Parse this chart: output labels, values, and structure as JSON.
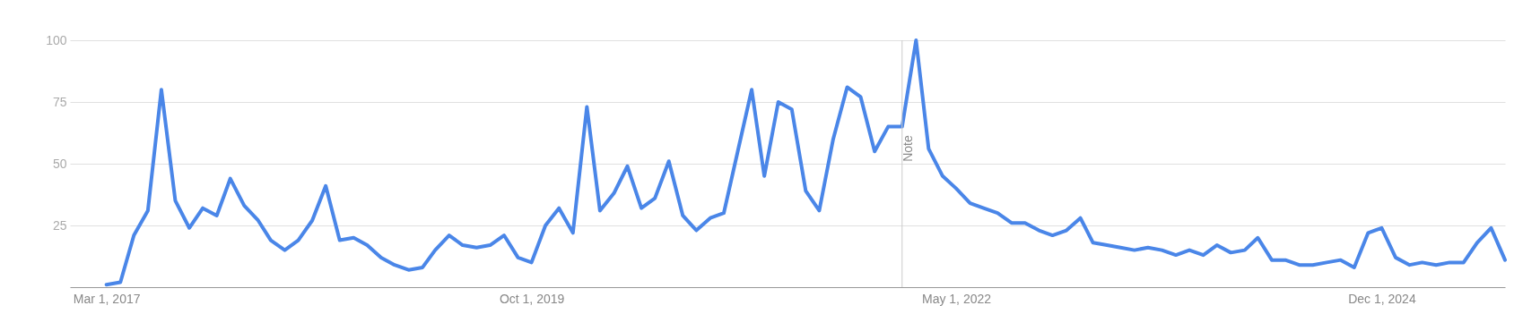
{
  "chart_data": {
    "type": "line",
    "x": [
      "2017-03-01",
      "2017-04-01",
      "2017-05-01",
      "2017-06-01",
      "2017-07-01",
      "2017-08-01",
      "2017-09-01",
      "2017-10-01",
      "2017-11-01",
      "2017-12-01",
      "2018-01-01",
      "2018-02-01",
      "2018-03-01",
      "2018-04-01",
      "2018-05-01",
      "2018-06-01",
      "2018-07-01",
      "2018-08-01",
      "2018-09-01",
      "2018-10-01",
      "2018-11-01",
      "2018-12-01",
      "2019-01-01",
      "2019-02-01",
      "2019-03-01",
      "2019-04-01",
      "2019-05-01",
      "2019-06-01",
      "2019-07-01",
      "2019-08-01",
      "2019-09-01",
      "2019-10-01",
      "2019-11-01",
      "2019-12-01",
      "2020-01-01",
      "2020-02-01",
      "2020-03-01",
      "2020-04-01",
      "2020-05-01",
      "2020-06-01",
      "2020-07-01",
      "2020-08-01",
      "2020-09-01",
      "2020-10-01",
      "2020-11-01",
      "2020-12-01",
      "2021-01-01",
      "2021-02-01",
      "2021-03-01",
      "2021-04-01",
      "2021-05-01",
      "2021-06-01",
      "2021-07-01",
      "2021-08-01",
      "2021-09-01",
      "2021-10-01",
      "2021-11-01",
      "2021-12-01",
      "2022-01-01",
      "2022-02-01",
      "2022-03-01",
      "2022-04-01",
      "2022-05-01",
      "2022-06-01",
      "2022-07-01",
      "2022-08-01",
      "2022-09-01",
      "2022-10-01",
      "2022-11-01",
      "2022-12-01",
      "2023-01-01",
      "2023-02-01",
      "2023-03-01",
      "2023-04-01",
      "2023-05-01",
      "2023-06-01",
      "2023-07-01",
      "2023-08-01",
      "2023-09-01",
      "2023-10-01",
      "2023-11-01",
      "2023-12-01",
      "2024-01-01",
      "2024-02-01",
      "2024-03-01",
      "2024-04-01",
      "2024-05-01",
      "2024-06-01",
      "2024-07-01",
      "2024-08-01",
      "2024-09-01",
      "2024-10-01",
      "2024-11-01",
      "2024-12-01",
      "2025-01-01",
      "2025-02-01",
      "2025-03-01",
      "2025-04-01",
      "2025-05-01",
      "2025-06-01",
      "2025-07-01",
      "2025-08-01",
      "2025-09-01"
    ],
    "series": [
      {
        "color": "#4a86e8",
        "values": [
          1,
          2,
          21,
          31,
          80,
          35,
          24,
          32,
          29,
          44,
          33,
          27,
          19,
          15,
          19,
          27,
          41,
          19,
          20,
          17,
          12,
          9,
          7,
          8,
          15,
          21,
          17,
          16,
          17,
          21,
          12,
          10,
          25,
          32,
          22,
          73,
          31,
          38,
          49,
          32,
          36,
          51,
          29,
          23,
          28,
          30,
          55,
          80,
          45,
          75,
          72,
          39,
          31,
          60,
          81,
          77,
          55,
          65,
          65,
          100,
          56,
          45,
          40,
          34,
          32,
          30,
          26,
          26,
          23,
          21,
          23,
          28,
          18,
          17,
          16,
          15,
          16,
          15,
          13,
          15,
          13,
          17,
          14,
          15,
          20,
          11,
          11,
          9,
          9,
          10,
          11,
          8,
          22,
          24,
          12,
          9,
          10,
          9,
          10,
          10,
          18,
          24,
          11
        ]
      }
    ],
    "xlim": [
      "2016-12-10",
      "2025-09-01"
    ],
    "xticks": [
      {
        "value": "2017-03-01",
        "label": "Mar 1, 2017"
      },
      {
        "value": "2019-10-01",
        "label": "Oct 1, 2019"
      },
      {
        "value": "2022-05-01",
        "label": "May 1, 2022"
      },
      {
        "value": "2024-12-01",
        "label": "Dec 1, 2024"
      }
    ],
    "ylim": [
      0,
      100
    ],
    "yticks": [
      25,
      50,
      75,
      100
    ],
    "grid": "y",
    "legend": false,
    "marker": "none",
    "line_style": "solid",
    "ref_lines": [
      {
        "axis": "x",
        "value": "2022-01-01",
        "label": "Note",
        "color": "#cccccc"
      }
    ]
  }
}
